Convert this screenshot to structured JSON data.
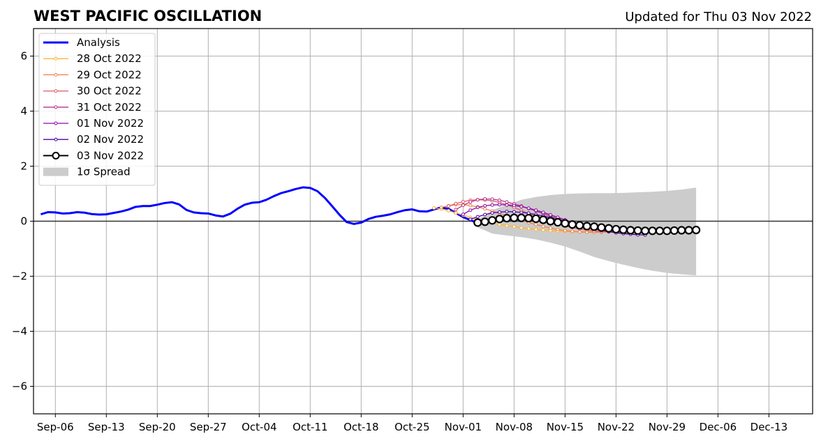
{
  "chart_data": {
    "type": "line",
    "title": "WEST PACIFIC OSCILLATION",
    "subtitle": "Updated for Thu 03 Nov 2022",
    "xlabel": "",
    "ylabel": "",
    "x_start": "2022-09-03",
    "x_end": "2022-12-19",
    "xticks": [
      "Sep-06",
      "Sep-13",
      "Sep-20",
      "Sep-27",
      "Oct-04",
      "Oct-11",
      "Oct-18",
      "Oct-25",
      "Nov-01",
      "Nov-08",
      "Nov-15",
      "Nov-22",
      "Nov-29",
      "Dec-06",
      "Dec-13"
    ],
    "xtick_dates": [
      "2022-09-06",
      "2022-09-13",
      "2022-09-20",
      "2022-09-27",
      "2022-10-04",
      "2022-10-11",
      "2022-10-18",
      "2022-10-25",
      "2022-11-01",
      "2022-11-08",
      "2022-11-15",
      "2022-11-22",
      "2022-11-29",
      "2022-12-06",
      "2022-12-13"
    ],
    "ylim": [
      -7,
      7
    ],
    "yticks": [
      6,
      4,
      2,
      0,
      -2,
      -4,
      -6
    ],
    "ytick_labels": [
      "6",
      "4",
      "2",
      "0",
      "−2",
      "−4",
      "−6"
    ],
    "grid": true,
    "legend_position": "top-left",
    "analysis": {
      "name": "Analysis",
      "color": "#0000ff",
      "dates": [
        "2022-09-04",
        "2022-09-05",
        "2022-09-06",
        "2022-09-07",
        "2022-09-08",
        "2022-09-09",
        "2022-09-10",
        "2022-09-11",
        "2022-09-12",
        "2022-09-13",
        "2022-09-14",
        "2022-09-15",
        "2022-09-16",
        "2022-09-17",
        "2022-09-18",
        "2022-09-19",
        "2022-09-20",
        "2022-09-21",
        "2022-09-22",
        "2022-09-23",
        "2022-09-24",
        "2022-09-25",
        "2022-09-26",
        "2022-09-27",
        "2022-09-28",
        "2022-09-29",
        "2022-09-30",
        "2022-10-01",
        "2022-10-02",
        "2022-10-03",
        "2022-10-04",
        "2022-10-05",
        "2022-10-06",
        "2022-10-07",
        "2022-10-08",
        "2022-10-09",
        "2022-10-10",
        "2022-10-11",
        "2022-10-12",
        "2022-10-13",
        "2022-10-14",
        "2022-10-15",
        "2022-10-16",
        "2022-10-17",
        "2022-10-18",
        "2022-10-19",
        "2022-10-20",
        "2022-10-21",
        "2022-10-22",
        "2022-10-23",
        "2022-10-24",
        "2022-10-25",
        "2022-10-26",
        "2022-10-27",
        "2022-10-28",
        "2022-10-29",
        "2022-10-30",
        "2022-10-31",
        "2022-11-01",
        "2022-11-02",
        "2022-11-03"
      ],
      "values": [
        0.25,
        0.33,
        0.32,
        0.28,
        0.29,
        0.33,
        0.31,
        0.26,
        0.24,
        0.25,
        0.3,
        0.35,
        0.42,
        0.52,
        0.55,
        0.55,
        0.6,
        0.66,
        0.69,
        0.61,
        0.41,
        0.32,
        0.29,
        0.28,
        0.21,
        0.17,
        0.27,
        0.45,
        0.6,
        0.67,
        0.69,
        0.78,
        0.91,
        1.02,
        1.09,
        1.17,
        1.23,
        1.21,
        1.09,
        0.85,
        0.55,
        0.24,
        -0.03,
        -0.1,
        -0.05,
        0.08,
        0.16,
        0.2,
        0.25,
        0.33,
        0.4,
        0.43,
        0.36,
        0.35,
        0.43,
        0.5,
        0.45,
        0.3,
        0.15,
        0.04,
        -0.07
      ]
    },
    "spread": {
      "name": "1σ Spread",
      "color": "#cccccc",
      "dates": [
        "2022-11-03",
        "2022-11-05",
        "2022-11-07",
        "2022-11-09",
        "2022-11-11",
        "2022-11-13",
        "2022-11-15",
        "2022-11-17",
        "2022-11-19",
        "2022-11-21",
        "2022-11-23",
        "2022-11-25",
        "2022-11-27",
        "2022-11-29",
        "2022-12-01",
        "2022-12-03"
      ],
      "upper": [
        0.05,
        0.4,
        0.6,
        0.78,
        0.88,
        0.95,
        0.99,
        1.01,
        1.02,
        1.02,
        1.03,
        1.05,
        1.07,
        1.1,
        1.15,
        1.22
      ],
      "lower": [
        -0.22,
        -0.45,
        -0.52,
        -0.58,
        -0.66,
        -0.78,
        -0.92,
        -1.1,
        -1.3,
        -1.45,
        -1.58,
        -1.7,
        -1.8,
        -1.88,
        -1.93,
        -1.97
      ]
    },
    "series": [
      {
        "name": "28 Oct 2022",
        "color": "#fdb42f",
        "start": "2022-10-28",
        "marker": "small",
        "values": [
          0.48,
          0.44,
          0.38,
          0.3,
          0.22,
          0.14,
          0.06,
          -0.01,
          -0.07,
          -0.12,
          -0.16,
          -0.2,
          -0.24,
          -0.27,
          -0.3,
          -0.32,
          -0.34,
          -0.36,
          -0.37,
          -0.38,
          -0.38,
          -0.38,
          -0.37,
          -0.36,
          -0.34
        ]
      },
      {
        "name": "29 Oct 2022",
        "color": "#f0804a",
        "start": "2022-10-29",
        "marker": "small",
        "values": [
          0.5,
          0.56,
          0.6,
          0.6,
          0.57,
          0.52,
          0.45,
          0.37,
          0.28,
          0.2,
          0.11,
          0.03,
          -0.05,
          -0.12,
          -0.19,
          -0.25,
          -0.3,
          -0.34,
          -0.37,
          -0.39,
          -0.4,
          -0.4,
          -0.4,
          -0.39,
          -0.38
        ]
      },
      {
        "name": "30 Oct 2022",
        "color": "#db5c68",
        "start": "2022-10-30",
        "marker": "small",
        "values": [
          0.55,
          0.64,
          0.71,
          0.76,
          0.78,
          0.77,
          0.74,
          0.68,
          0.6,
          0.5,
          0.39,
          0.28,
          0.17,
          0.07,
          -0.02,
          -0.1,
          -0.17,
          -0.23,
          -0.28,
          -0.32,
          -0.35,
          -0.37,
          -0.38,
          -0.39,
          -0.39
        ]
      },
      {
        "name": "31 Oct 2022",
        "color": "#b83289",
        "start": "2022-10-31",
        "marker": "small",
        "values": [
          0.42,
          0.58,
          0.7,
          0.78,
          0.81,
          0.8,
          0.76,
          0.7,
          0.63,
          0.55,
          0.46,
          0.37,
          0.27,
          0.18,
          0.09,
          0.0,
          -0.08,
          -0.15,
          -0.22,
          -0.28,
          -0.33,
          -0.37,
          -0.41,
          -0.44,
          -0.46
        ]
      },
      {
        "name": "01 Nov 2022",
        "color": "#8b0aa5",
        "start": "2022-11-01",
        "marker": "small",
        "values": [
          0.25,
          0.4,
          0.5,
          0.56,
          0.59,
          0.6,
          0.59,
          0.57,
          0.53,
          0.47,
          0.4,
          0.32,
          0.23,
          0.14,
          0.05,
          -0.04,
          -0.12,
          -0.2,
          -0.27,
          -0.33,
          -0.38,
          -0.42,
          -0.45,
          -0.47,
          -0.49
        ]
      },
      {
        "name": "02 Nov 2022",
        "color": "#5302a3",
        "start": "2022-11-02",
        "marker": "small",
        "values": [
          0.07,
          0.16,
          0.24,
          0.3,
          0.33,
          0.35,
          0.34,
          0.32,
          0.29,
          0.24,
          0.19,
          0.13,
          0.06,
          -0.01,
          -0.08,
          -0.15,
          -0.22,
          -0.28,
          -0.33,
          -0.38,
          -0.42,
          -0.45,
          -0.47,
          -0.49,
          -0.5
        ]
      },
      {
        "name": "03 Nov 2022",
        "color": "#000000",
        "start": "2022-11-03",
        "marker": "large",
        "values": [
          -0.05,
          -0.02,
          0.03,
          0.08,
          0.11,
          0.12,
          0.12,
          0.11,
          0.09,
          0.05,
          0.0,
          -0.04,
          -0.08,
          -0.12,
          -0.15,
          -0.18,
          -0.2,
          -0.23,
          -0.26,
          -0.29,
          -0.31,
          -0.33,
          -0.34,
          -0.35,
          -0.35,
          -0.35,
          -0.35,
          -0.34,
          -0.33,
          -0.33,
          -0.32
        ]
      }
    ]
  }
}
